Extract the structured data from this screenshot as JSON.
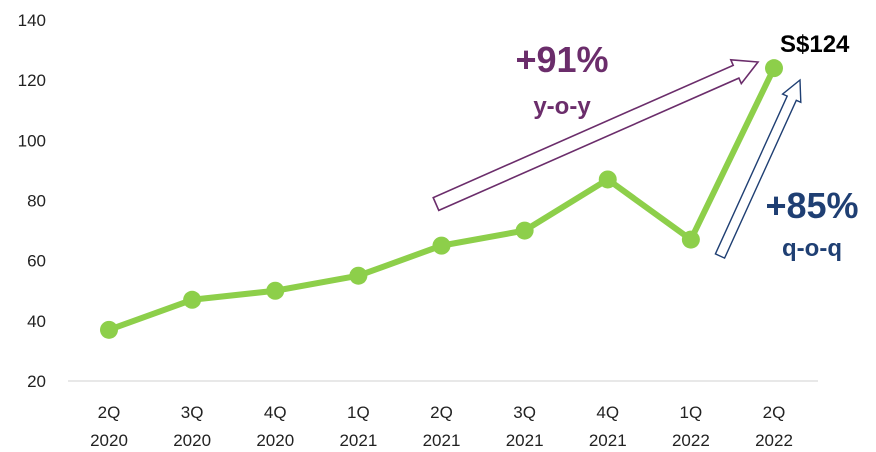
{
  "chart_data": {
    "type": "line",
    "title": "",
    "xlabel": "",
    "ylabel": "",
    "ylim": [
      20,
      140
    ],
    "yticks": [
      20,
      40,
      60,
      80,
      100,
      120,
      140
    ],
    "grid": false,
    "categories": [
      {
        "q": "2Q",
        "y": "2020"
      },
      {
        "q": "3Q",
        "y": "2020"
      },
      {
        "q": "4Q",
        "y": "2020"
      },
      {
        "q": "1Q",
        "y": "2021"
      },
      {
        "q": "2Q",
        "y": "2021"
      },
      {
        "q": "3Q",
        "y": "2021"
      },
      {
        "q": "4Q",
        "y": "2021"
      },
      {
        "q": "1Q",
        "y": "2022"
      },
      {
        "q": "2Q",
        "y": "2022"
      }
    ],
    "series": [
      {
        "values": [
          37,
          47,
          50,
          55,
          65,
          70,
          87,
          67,
          124
        ]
      }
    ],
    "colors": {
      "line": "#8dcf4a",
      "yoy": "#6b2d6b",
      "qoq": "#1f3f73"
    },
    "annotations": {
      "last_value_label": "S$124",
      "yoy": {
        "value": "+91%",
        "label": "y-o-y"
      },
      "qoq": {
        "value": "+85%",
        "label": "q-o-q"
      }
    }
  }
}
